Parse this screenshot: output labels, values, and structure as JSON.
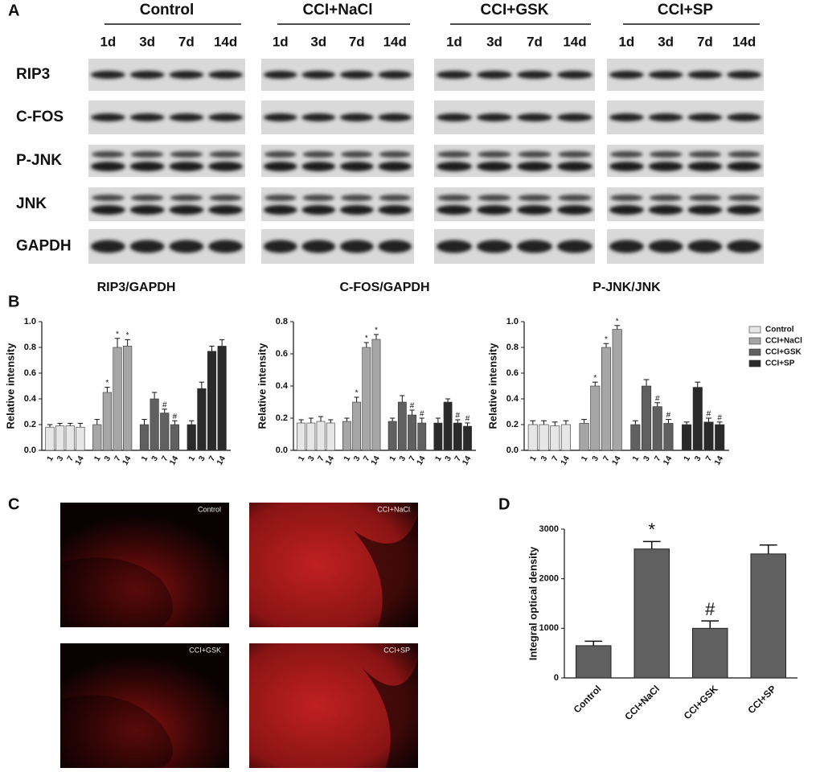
{
  "panel_labels": [
    "A",
    "B",
    "C",
    "D"
  ],
  "blot": {
    "groups": [
      "Control",
      "CCI+NaCl",
      "CCI+GSK",
      "CCI+SP"
    ],
    "times": [
      "1d",
      "3d",
      "7d",
      "14d"
    ],
    "rows": [
      "RIP3",
      "C-FOS",
      "P-JNK",
      "JNK",
      "GAPDH"
    ]
  },
  "images": {
    "labels": [
      "Control",
      "CCI+NaCl",
      "CCI+GSK",
      "CCI+SP"
    ]
  },
  "chart_data": [
    {
      "type": "grouped_bar",
      "title": "RIP3/GAPDH",
      "y_label": "Relative intensity",
      "categories": [
        "1",
        "3",
        "7",
        "14"
      ],
      "ylim": [
        0,
        1
      ],
      "yticks": [
        {
          "value": 0,
          "label": "0.0"
        },
        0.2,
        0.4,
        0.6,
        0.8,
        {
          "value": 1,
          "label": "1.0"
        }
      ],
      "series": [
        {
          "color": "#e6e6e6",
          "values": [
            0.18,
            0.19,
            0.19,
            0.18
          ],
          "errors": [
            0.02,
            0.02,
            0.02,
            0.03
          ],
          "marks": [
            null,
            null,
            null,
            null
          ]
        },
        {
          "color": "#a6a6a6",
          "values": [
            0.2,
            0.45,
            0.8,
            0.81
          ],
          "errors": [
            0.04,
            0.04,
            0.07,
            0.05
          ],
          "marks": [
            null,
            "*",
            "*",
            "*"
          ]
        },
        {
          "color": "#606060",
          "values": [
            0.2,
            0.4,
            0.29,
            0.2
          ],
          "errors": [
            0.04,
            0.05,
            0.03,
            0.03
          ],
          "marks": [
            null,
            null,
            "#",
            "#"
          ]
        },
        {
          "color": "#2a2a2a",
          "values": [
            0.2,
            0.48,
            0.77,
            0.81
          ],
          "errors": [
            0.03,
            0.05,
            0.04,
            0.05
          ],
          "marks": [
            null,
            null,
            null,
            null
          ]
        }
      ]
    },
    {
      "type": "grouped_bar",
      "title": "C-FOS/GAPDH",
      "y_label": "Relative intensity",
      "categories": [
        "1",
        "3",
        "7",
        "14"
      ],
      "ylim": [
        0,
        0.8
      ],
      "yticks": [
        {
          "value": 0,
          "label": "0.0"
        },
        0.2,
        0.4,
        0.6,
        0.8
      ],
      "series": [
        {
          "color": "#e6e6e6",
          "values": [
            0.17,
            0.17,
            0.18,
            0.17
          ],
          "errors": [
            0.02,
            0.03,
            0.03,
            0.02
          ],
          "marks": [
            null,
            null,
            null,
            null
          ]
        },
        {
          "color": "#a6a6a6",
          "values": [
            0.18,
            0.3,
            0.64,
            0.69
          ],
          "errors": [
            0.02,
            0.03,
            0.03,
            0.03
          ],
          "marks": [
            null,
            "*",
            "*",
            "*"
          ]
        },
        {
          "color": "#606060",
          "values": [
            0.18,
            0.3,
            0.22,
            0.17
          ],
          "errors": [
            0.02,
            0.04,
            0.03,
            0.03
          ],
          "marks": [
            null,
            null,
            "#",
            "#"
          ]
        },
        {
          "color": "#2a2a2a",
          "values": [
            0.17,
            0.3,
            0.17,
            0.15
          ],
          "errors": [
            0.03,
            0.02,
            0.02,
            0.02
          ],
          "marks": [
            null,
            null,
            "#",
            "#"
          ]
        }
      ]
    },
    {
      "type": "grouped_bar",
      "title": "P-JNK/JNK",
      "y_label": "Relative intensity",
      "categories": [
        "1",
        "3",
        "7",
        "14"
      ],
      "legend": "right",
      "ylim": [
        0,
        1
      ],
      "yticks": [
        {
          "value": 0,
          "label": "0.0"
        },
        0.2,
        0.4,
        0.6,
        0.8,
        {
          "value": 1,
          "label": "1.0"
        }
      ],
      "series": [
        {
          "name": "Control",
          "color": "#e6e6e6",
          "values": [
            0.2,
            0.2,
            0.19,
            0.2
          ],
          "errors": [
            0.03,
            0.03,
            0.03,
            0.03
          ],
          "marks": [
            null,
            null,
            null,
            null
          ]
        },
        {
          "name": "CCI+NaCl",
          "color": "#a6a6a6",
          "values": [
            0.21,
            0.5,
            0.8,
            0.94
          ],
          "errors": [
            0.03,
            0.03,
            0.03,
            0.03
          ],
          "marks": [
            null,
            "*",
            "*",
            "*"
          ]
        },
        {
          "name": "CCI+GSK",
          "color": "#606060",
          "values": [
            0.2,
            0.5,
            0.34,
            0.21
          ],
          "errors": [
            0.03,
            0.05,
            0.03,
            0.03
          ],
          "marks": [
            null,
            null,
            "#",
            "#"
          ]
        },
        {
          "name": "CCI+SP",
          "color": "#2a2a2a",
          "values": [
            0.2,
            0.49,
            0.22,
            0.2
          ],
          "errors": [
            0.02,
            0.04,
            0.03,
            0.02
          ],
          "marks": [
            null,
            null,
            "#",
            "#"
          ]
        }
      ]
    },
    {
      "type": "bar",
      "y_label": "Integral optical density",
      "color": "#606060",
      "categories": [
        "Control",
        "CCI+NaCl",
        "CCI+GSK",
        "CCI+SP"
      ],
      "values": [
        650,
        2600,
        1000,
        2500
      ],
      "errors": [
        90,
        150,
        150,
        180
      ],
      "marks": [
        null,
        "*",
        "#",
        null
      ],
      "ylim": [
        0,
        3000
      ],
      "yticks": [
        0,
        1000,
        2000,
        3000
      ]
    }
  ]
}
